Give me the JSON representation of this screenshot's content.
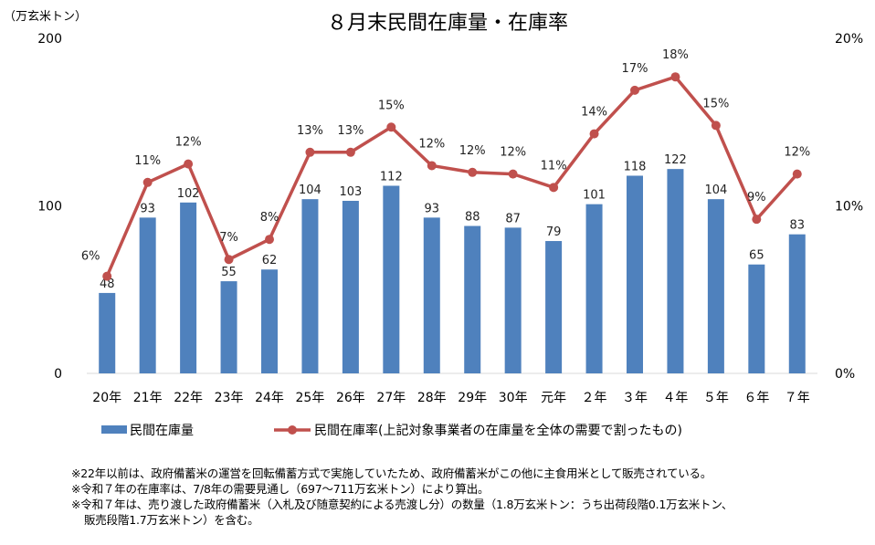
{
  "chart_data": {
    "type": "bar+line",
    "title": "８月末民間在庫量・在庫率",
    "left_unit_label": "（万玄米トン）",
    "categories": [
      "20年",
      "21年",
      "22年",
      "23年",
      "24年",
      "25年",
      "26年",
      "27年",
      "28年",
      "29年",
      "30年",
      "元年",
      "２年",
      "３年",
      "４年",
      "５年",
      "６年",
      "７年"
    ],
    "left_axis": {
      "ylim": [
        0,
        200
      ],
      "ticks": [
        "0",
        "100",
        "200"
      ]
    },
    "right_axis": {
      "ylim": [
        0,
        20
      ],
      "ticks": [
        "0%",
        "10%",
        "20%"
      ]
    },
    "series": [
      {
        "name": "民間在庫量",
        "type": "bar",
        "axis": "left",
        "color": "#4f81bd",
        "values": [
          48,
          93,
          102,
          55,
          62,
          104,
          103,
          112,
          93,
          88,
          87,
          79,
          101,
          118,
          122,
          104,
          65,
          83
        ],
        "labels": [
          "48",
          "93",
          "102",
          "55",
          "62",
          "104",
          "103",
          "112",
          "93",
          "88",
          "87",
          "79",
          "101",
          "118",
          "122",
          "104",
          "65",
          "83"
        ]
      },
      {
        "name": "民間在庫率(上記対象事業者の在庫量を全体の需要で割ったもの)",
        "type": "line",
        "axis": "right",
        "color": "#c0504d",
        "values": [
          5.8,
          11.4,
          12.5,
          6.8,
          8.0,
          13.2,
          13.2,
          14.7,
          12.4,
          12.0,
          11.9,
          11.1,
          14.3,
          16.9,
          17.7,
          14.8,
          9.2,
          11.9
        ],
        "labels": [
          "6%",
          "11%",
          "12%",
          "7%",
          "8%",
          "13%",
          "13%",
          "15%",
          "12%",
          "12%",
          "12%",
          "11%",
          "14%",
          "17%",
          "18%",
          "15%",
          "9%",
          "12%"
        ]
      }
    ],
    "grid": false,
    "legend": "bottom"
  },
  "notes": [
    "※22年以前は、政府備蓄米の運営を回転備蓄方式で実施していたため、政府備蓄米がこの他に主食用米として販売されている。",
    "※令和７年の在庫率は、7/8年の需要見通し（697～711万玄米トン）により算出。",
    "※令和７年は、売り渡した政府備蓄米（入札及び随意契約による売渡し分）の数量（1.8万玄米トン：うち出荷段階0.1万玄米トン、",
    "販売段階1.7万玄米トン）を含む。"
  ]
}
